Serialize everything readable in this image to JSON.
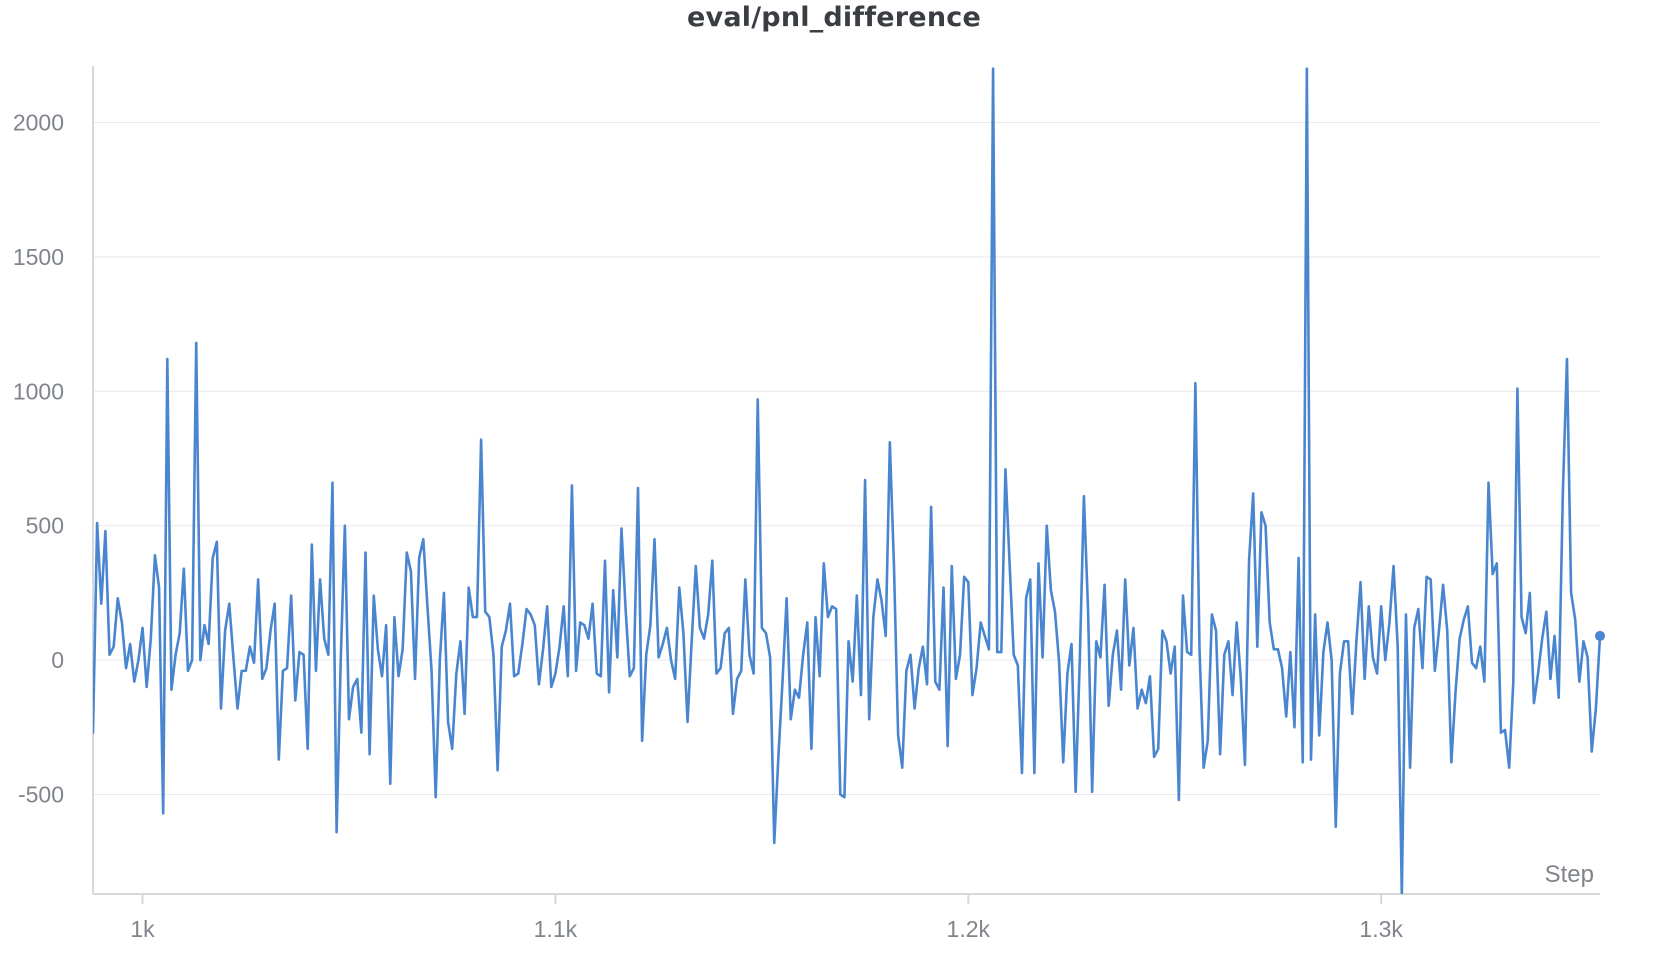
{
  "chart_data": {
    "type": "line",
    "title": "eval/pnl_difference",
    "xlabel": "Step",
    "ylabel": "",
    "xlim": [
      988,
      1353
    ],
    "ylim": [
      -870,
      2210
    ],
    "x_ticks": [
      {
        "value": 1000,
        "label": "1k"
      },
      {
        "value": 1100,
        "label": "1.1k"
      },
      {
        "value": 1200,
        "label": "1.2k"
      },
      {
        "value": 1300,
        "label": "1.3k"
      }
    ],
    "y_ticks": [
      {
        "value": 2000,
        "label": "2000"
      },
      {
        "value": 1500,
        "label": "1500"
      },
      {
        "value": 1000,
        "label": "1000"
      },
      {
        "value": 500,
        "label": "500"
      },
      {
        "value": 0,
        "label": "0"
      },
      {
        "value": -500,
        "label": "-500"
      }
    ],
    "grid": true,
    "legend": "none",
    "series": [
      {
        "color": "#4a86d0",
        "x_start": 988,
        "x_step": 1,
        "values": [
          -270,
          510,
          210,
          480,
          20,
          50,
          230,
          140,
          -30,
          60,
          -80,
          0,
          120,
          -100,
          80,
          390,
          270,
          -570,
          1120,
          -110,
          20,
          100,
          340,
          -40,
          0,
          1180,
          0,
          130,
          60,
          380,
          440,
          -180,
          110,
          210,
          10,
          -180,
          -40,
          -40,
          50,
          -10,
          300,
          -70,
          -30,
          110,
          210,
          -370,
          -40,
          -30,
          240,
          -150,
          30,
          20,
          -330,
          430,
          -40,
          300,
          80,
          20,
          660,
          -640,
          0,
          500,
          -220,
          -100,
          -70,
          -270,
          400,
          -350,
          240,
          40,
          -60,
          130,
          -460,
          160,
          -60,
          40,
          400,
          330,
          -70,
          380,
          450,
          200,
          -40,
          -510,
          0,
          250,
          -230,
          -330,
          -50,
          70,
          -200,
          270,
          160,
          160,
          820,
          180,
          160,
          20,
          -410,
          50,
          110,
          210,
          -60,
          -50,
          60,
          190,
          170,
          130,
          -90,
          40,
          200,
          -100,
          -50,
          50,
          200,
          -60,
          650,
          -40,
          140,
          130,
          80,
          210,
          -50,
          -60,
          370,
          -120,
          260,
          10,
          490,
          190,
          -60,
          -30,
          640,
          -300,
          20,
          130,
          450,
          10,
          60,
          120,
          0,
          -70,
          270,
          100,
          -230,
          70,
          350,
          120,
          80,
          170,
          370,
          -50,
          -30,
          100,
          120,
          -200,
          -70,
          -40,
          300,
          20,
          -50,
          970,
          120,
          100,
          10,
          -680,
          -360,
          -80,
          230,
          -220,
          -110,
          -140,
          20,
          140,
          -330,
          160,
          -60,
          360,
          160,
          200,
          190,
          -500,
          -510,
          70,
          -80,
          240,
          -130,
          670,
          -220,
          160,
          300,
          220,
          90,
          810,
          350,
          -280,
          -400,
          -40,
          20,
          -180,
          -30,
          50,
          -90,
          570,
          -80,
          -110,
          270,
          -320,
          350,
          -70,
          20,
          310,
          290,
          -130,
          -30,
          140,
          90,
          40,
          2200,
          30,
          30,
          710,
          360,
          20,
          -20,
          -420,
          230,
          300,
          -420,
          360,
          10,
          500,
          260,
          180,
          -10,
          -380,
          -50,
          60,
          -490,
          0,
          610,
          190,
          -490,
          70,
          10,
          280,
          -170,
          20,
          110,
          -110,
          300,
          -20,
          120,
          -180,
          -110,
          -160,
          -60,
          -360,
          -330,
          110,
          70,
          -50,
          50,
          -520,
          240,
          30,
          20,
          1030,
          40,
          -400,
          -300,
          170,
          110,
          -350,
          20,
          70,
          -130,
          140,
          -70,
          -390,
          370,
          620,
          50,
          550,
          500,
          140,
          40,
          40,
          -30,
          -210,
          30,
          -250,
          380,
          -380,
          2200,
          -370,
          170,
          -280,
          30,
          140,
          0,
          -620,
          -50,
          70,
          70,
          -200,
          70,
          290,
          -70,
          200,
          10,
          -50,
          200,
          0,
          140,
          350,
          50,
          -870,
          170,
          -400,
          120,
          190,
          -30,
          310,
          300,
          -40,
          110,
          280,
          110,
          -380,
          -120,
          80,
          150,
          200,
          -10,
          -30,
          50,
          -80,
          660,
          320,
          360,
          -270,
          -260,
          -400,
          -80,
          1010,
          160,
          100,
          250,
          -160,
          -50,
          80,
          180,
          -70,
          90,
          -140,
          620,
          1120,
          250,
          150,
          -80,
          70,
          10,
          -340,
          -180,
          90
        ]
      }
    ]
  }
}
